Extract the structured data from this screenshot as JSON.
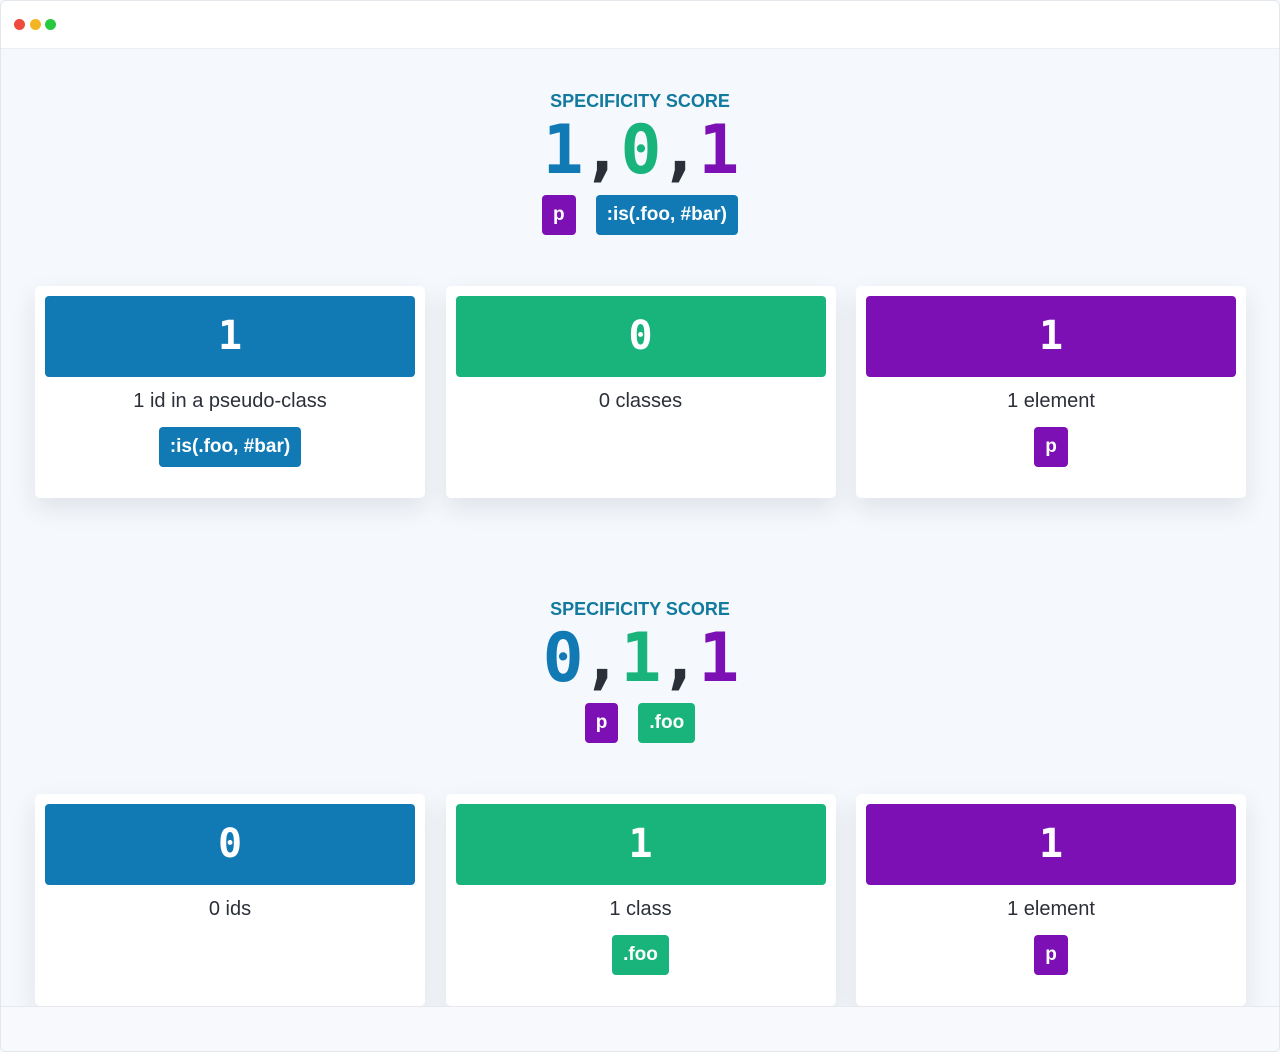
{
  "panels": [
    {
      "label": "SPECIFICITY SCORE",
      "separator": ",",
      "score": [
        {
          "kind": "id",
          "value": 1
        },
        {
          "kind": "class",
          "value": 0
        },
        {
          "kind": "element",
          "value": 1
        }
      ],
      "tags": [
        {
          "kind": "element",
          "text": "p"
        },
        {
          "kind": "id",
          "text": ":is(.foo, #bar)"
        }
      ],
      "cards": [
        {
          "kind": "id",
          "value": 1,
          "description": "1 id in a pseudo-class",
          "tags": [
            ":is(.foo, #bar)"
          ]
        },
        {
          "kind": "class",
          "value": 0,
          "description": "0 classes",
          "tags": []
        },
        {
          "kind": "element",
          "value": 1,
          "description": "1 element",
          "tags": [
            "p"
          ]
        }
      ]
    },
    {
      "label": "SPECIFICITY SCORE",
      "separator": ",",
      "score": [
        {
          "kind": "id",
          "value": 0
        },
        {
          "kind": "class",
          "value": 1
        },
        {
          "kind": "element",
          "value": 1
        }
      ],
      "tags": [
        {
          "kind": "element",
          "text": "p"
        },
        {
          "kind": "class",
          "text": ".foo"
        }
      ],
      "cards": [
        {
          "kind": "id",
          "value": 0,
          "description": "0 ids",
          "tags": []
        },
        {
          "kind": "class",
          "value": 1,
          "description": "1 class",
          "tags": [
            ".foo"
          ]
        },
        {
          "kind": "element",
          "value": 1,
          "description": "1 element",
          "tags": [
            "p"
          ]
        }
      ]
    }
  ]
}
